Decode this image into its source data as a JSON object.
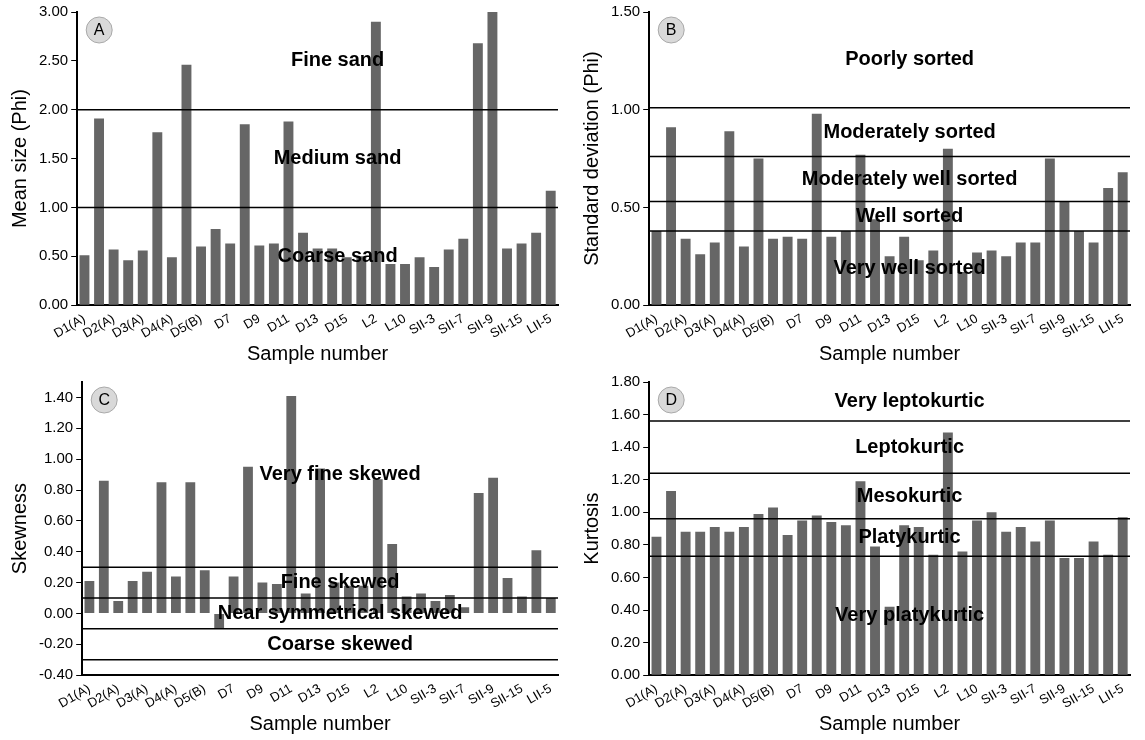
{
  "chart_data": [
    {
      "type": "bar",
      "title": "A",
      "xlabel": "Sample number",
      "ylabel": "Mean size (Phi)",
      "grid": false,
      "legend": false,
      "categories": [
        "D1(A)",
        null,
        "D2(A)",
        null,
        "D3(A)",
        null,
        "D4(A)",
        null,
        "D5(B)",
        null,
        "D7",
        null,
        "D9",
        null,
        "D11",
        null,
        "D13",
        null,
        "D15",
        null,
        "L2",
        null,
        "L10",
        null,
        "SII-3",
        null,
        "SII-7",
        null,
        "SII-9",
        null,
        "SII-15",
        null,
        "LII-5"
      ],
      "series": [
        {
          "color": "#666666",
          "values": [
            0.51,
            1.91,
            0.57,
            0.46,
            0.56,
            1.77,
            0.49,
            2.46,
            0.6,
            0.78,
            0.63,
            1.85,
            0.61,
            0.63,
            1.88,
            0.74,
            0.58,
            0.58,
            0.49,
            0.5,
            2.9,
            0.42,
            0.42,
            0.49,
            0.39,
            0.57,
            0.68,
            2.68,
            3.0,
            0.58,
            0.63,
            0.74,
            1.17
          ]
        }
      ],
      "ylim": [
        0,
        3
      ],
      "yticks": [
        {
          "value": 0,
          "label": "0.00"
        },
        {
          "value": 0.5,
          "label": "0.50"
        },
        {
          "value": 1,
          "label": "1.00"
        },
        {
          "value": 1.5,
          "label": "1.50"
        },
        {
          "value": 2,
          "label": "2.00"
        },
        {
          "value": 2.5,
          "label": "2.50"
        },
        {
          "value": 3,
          "label": "3.00"
        }
      ],
      "ref_lines": [
        {
          "axis": "y",
          "value": 2,
          "color": "#000000"
        },
        {
          "axis": "y",
          "value": 1,
          "color": "#000000"
        }
      ],
      "annotations": [
        "Fine sand",
        "Medium sand",
        "Coarse sand"
      ]
    },
    {
      "type": "bar",
      "title": "B",
      "xlabel": "Sample number",
      "ylabel": "Standard deviation (Phi)",
      "grid": false,
      "legend": false,
      "categories": [
        "D1(A)",
        null,
        "D2(A)",
        null,
        "D3(A)",
        null,
        "D4(A)",
        null,
        "D5(B)",
        null,
        "D7",
        null,
        "D9",
        null,
        "D11",
        null,
        "D13",
        null,
        "D15",
        null,
        "L2",
        null,
        "L10",
        null,
        "SII-3",
        null,
        "SII-7",
        null,
        "SII-9",
        null,
        "SII-15",
        null,
        "LII-5"
      ],
      "series": [
        {
          "color": "#666666",
          "values": [
            0.38,
            0.91,
            0.34,
            0.26,
            0.32,
            0.89,
            0.3,
            0.75,
            0.34,
            0.35,
            0.34,
            0.98,
            0.35,
            0.38,
            0.77,
            0.44,
            0.25,
            0.35,
            0.23,
            0.28,
            0.8,
            0.17,
            0.27,
            0.28,
            0.25,
            0.32,
            0.32,
            0.75,
            0.53,
            0.38,
            0.32,
            0.6,
            0.68
          ]
        }
      ],
      "ylim": [
        0,
        1.5
      ],
      "yticks": [
        {
          "value": 0,
          "label": "0.00"
        },
        {
          "value": 0.5,
          "label": "0.50"
        },
        {
          "value": 1,
          "label": "1.00"
        },
        {
          "value": 1.5,
          "label": "1.50"
        }
      ],
      "ref_lines": [
        {
          "axis": "y",
          "value": 1.01,
          "color": "#000000"
        },
        {
          "axis": "y",
          "value": 0.76,
          "color": "#000000"
        },
        {
          "axis": "y",
          "value": 0.53,
          "color": "#000000"
        },
        {
          "axis": "y",
          "value": 0.38,
          "color": "#000000"
        }
      ],
      "annotations": [
        "Poorly sorted",
        "Moderately sorted",
        "Moderately well sorted",
        "Well sorted",
        "Very well sorted"
      ]
    },
    {
      "type": "bar",
      "title": "C",
      "xlabel": "Sample number",
      "ylabel": "Skewness",
      "grid": false,
      "legend": false,
      "categories": [
        "D1(A)",
        null,
        "D2(A)",
        null,
        "D3(A)",
        null,
        "D4(A)",
        null,
        "D5(B)",
        null,
        "D7",
        null,
        "D9",
        null,
        "D11",
        null,
        "D13",
        null,
        "D15",
        null,
        "L2",
        null,
        "L10",
        null,
        "SII-3",
        null,
        "SII-7",
        null,
        "SII-9",
        null,
        "SII-15",
        null,
        "LII-5"
      ],
      "series": [
        {
          "color": "#666666",
          "values": [
            0.21,
            0.86,
            0.08,
            0.21,
            0.27,
            0.85,
            0.24,
            0.85,
            0.28,
            -0.1,
            0.24,
            0.95,
            0.2,
            0.19,
            1.41,
            0.13,
            0.94,
            0.2,
            0.18,
            0.18,
            0.87,
            0.45,
            0.11,
            0.13,
            0.08,
            0.12,
            0.04,
            0.78,
            0.88,
            0.23,
            0.11,
            0.41,
            0.1
          ]
        }
      ],
      "ylim": [
        -0.4,
        1.5
      ],
      "yticks": [
        {
          "value": -0.4,
          "label": "-0.40"
        },
        {
          "value": -0.2,
          "label": "-0.20"
        },
        {
          "value": 0,
          "label": "0.00"
        },
        {
          "value": 0.2,
          "label": "0.20"
        },
        {
          "value": 0.4,
          "label": "0.40"
        },
        {
          "value": 0.6,
          "label": "0.60"
        },
        {
          "value": 0.8,
          "label": "0.80"
        },
        {
          "value": 1,
          "label": "1.00"
        },
        {
          "value": 1.2,
          "label": "1.20"
        },
        {
          "value": 1.4,
          "label": "1.40"
        }
      ],
      "ref_lines": [
        {
          "axis": "y",
          "value": 0.3,
          "color": "#000000"
        },
        {
          "axis": "y",
          "value": 0.1,
          "color": "#000000"
        },
        {
          "axis": "y",
          "value": -0.1,
          "color": "#000000"
        },
        {
          "axis": "y",
          "value": -0.3,
          "color": "#000000"
        }
      ],
      "annotations": [
        "Very fine skewed",
        "Fine skewed",
        "Near symmetrical skewed",
        "Coarse skewed"
      ]
    },
    {
      "type": "bar",
      "title": "D",
      "xlabel": "Sample number",
      "ylabel": "Kurtosis",
      "grid": false,
      "legend": false,
      "categories": [
        "D1(A)",
        null,
        "D2(A)",
        null,
        "D3(A)",
        null,
        "D4(A)",
        null,
        "D5(B)",
        null,
        "D7",
        null,
        "D9",
        null,
        "D11",
        null,
        "D13",
        null,
        "D15",
        null,
        "L2",
        null,
        "L10",
        null,
        "SII-3",
        null,
        "SII-7",
        null,
        "SII-9",
        null,
        "SII-15",
        null,
        "LII-5"
      ],
      "series": [
        {
          "color": "#666666",
          "values": [
            0.85,
            1.13,
            0.88,
            0.88,
            0.91,
            0.88,
            0.91,
            0.99,
            1.03,
            0.86,
            0.95,
            0.98,
            0.94,
            0.92,
            1.19,
            0.79,
            0.42,
            0.92,
            0.91,
            0.74,
            1.49,
            0.76,
            0.95,
            1.0,
            0.88,
            0.91,
            0.82,
            0.95,
            0.72,
            0.72,
            0.82,
            0.74,
            0.97
          ]
        }
      ],
      "ylim": [
        0,
        1.8
      ],
      "yticks": [
        {
          "value": 0,
          "label": "0.00"
        },
        {
          "value": 0.2,
          "label": "0.20"
        },
        {
          "value": 0.4,
          "label": "0.40"
        },
        {
          "value": 0.6,
          "label": "0.60"
        },
        {
          "value": 0.8,
          "label": "0.80"
        },
        {
          "value": 1,
          "label": "1.00"
        },
        {
          "value": 1.2,
          "label": "1.20"
        },
        {
          "value": 1.4,
          "label": "1.40"
        },
        {
          "value": 1.6,
          "label": "1.60"
        },
        {
          "value": 1.8,
          "label": "1.80"
        }
      ],
      "ref_lines": [
        {
          "axis": "y",
          "value": 1.56,
          "color": "#000000"
        },
        {
          "axis": "y",
          "value": 1.24,
          "color": "#000000"
        },
        {
          "axis": "y",
          "value": 0.96,
          "color": "#000000"
        },
        {
          "axis": "y",
          "value": 0.73,
          "color": "#000000"
        }
      ],
      "annotations": [
        "Very leptokurtic",
        "Leptokurtic",
        "Mesokurtic",
        "Platykurtic",
        "Very platykurtic"
      ]
    }
  ]
}
